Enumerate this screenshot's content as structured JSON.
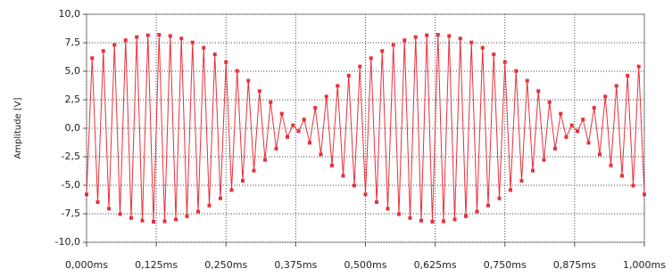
{
  "chart_data": {
    "type": "line",
    "y_label": "Amplitude [V]",
    "x": [
      0,
      0.01,
      0.02,
      0.03,
      0.04,
      0.05,
      0.06,
      0.07,
      0.08,
      0.09,
      0.1,
      0.11,
      0.12,
      0.13,
      0.14,
      0.15,
      0.16,
      0.17,
      0.18,
      0.19,
      0.2,
      0.21,
      0.22,
      0.23,
      0.24,
      0.25,
      0.26,
      0.27,
      0.28,
      0.29,
      0.3,
      0.31,
      0.32,
      0.33,
      0.34,
      0.35,
      0.36,
      0.37,
      0.38,
      0.39,
      0.4,
      0.41,
      0.42,
      0.43,
      0.44,
      0.45,
      0.46,
      0.47,
      0.48,
      0.49,
      0.5,
      0.51,
      0.52,
      0.53,
      0.54,
      0.55,
      0.56,
      0.57,
      0.58,
      0.59,
      0.6,
      0.61,
      0.62,
      0.63,
      0.64,
      0.65,
      0.66,
      0.67,
      0.68,
      0.69,
      0.7,
      0.71,
      0.72,
      0.73,
      0.74,
      0.75,
      0.76,
      0.77,
      0.78,
      0.79,
      0.8,
      0.81,
      0.82,
      0.83,
      0.84,
      0.85,
      0.86,
      0.87,
      0.88,
      0.89,
      0.9,
      0.91,
      0.92,
      0.93,
      0.94,
      0.95,
      0.96,
      0.97,
      0.98,
      0.99,
      1
    ],
    "series": [
      {
        "color": "#e8303a",
        "values": [
          -5.8,
          6.15,
          -6.48,
          6.78,
          -7.06,
          7.31,
          -7.53,
          7.72,
          -7.87,
          8.0,
          -8.1,
          8.16,
          -8.2,
          8.2,
          -8.16,
          8.1,
          -8.0,
          7.87,
          -7.72,
          7.53,
          -7.31,
          7.06,
          -6.78,
          6.48,
          -6.15,
          5.8,
          -5.42,
          5.03,
          -4.61,
          4.17,
          -3.72,
          3.26,
          -2.78,
          2.29,
          -1.79,
          1.28,
          -0.77,
          0.26,
          -0.26,
          0.77,
          -1.28,
          1.79,
          -2.29,
          2.78,
          -3.26,
          3.72,
          -4.17,
          4.61,
          -5.03,
          5.42,
          -5.8,
          6.15,
          -6.48,
          6.78,
          -7.06,
          7.31,
          -7.53,
          7.72,
          -7.87,
          8.0,
          -8.1,
          8.16,
          -8.2,
          8.2,
          -8.16,
          8.1,
          -8.0,
          7.87,
          -7.72,
          7.53,
          -7.31,
          7.06,
          -6.78,
          6.48,
          -6.15,
          5.8,
          -5.42,
          5.03,
          -4.61,
          4.17,
          -3.72,
          3.26,
          -2.78,
          2.29,
          -1.79,
          1.28,
          -0.77,
          0.26,
          -0.26,
          0.77,
          -1.28,
          1.79,
          -2.29,
          2.78,
          -3.26,
          3.72,
          -4.17,
          4.61,
          -5.03,
          5.42,
          -5.8
        ]
      }
    ],
    "xlim": [
      0,
      1
    ],
    "xticks": [
      {
        "value": 0,
        "label": "0,000ms"
      },
      {
        "value": 0.125,
        "label": "0,125ms"
      },
      {
        "value": 0.25,
        "label": "0,250ms"
      },
      {
        "value": 0.375,
        "label": "0,375ms"
      },
      {
        "value": 0.5,
        "label": "0,500ms"
      },
      {
        "value": 0.625,
        "label": "0,625ms"
      },
      {
        "value": 0.75,
        "label": "0,750ms"
      },
      {
        "value": 0.875,
        "label": "0,875ms"
      },
      {
        "value": 1,
        "label": "1,000ms"
      }
    ],
    "ylim": [
      -10,
      10
    ],
    "yticks": [
      {
        "value": -10,
        "label": "-10,0"
      },
      {
        "value": -7.5,
        "label": "-7,5"
      },
      {
        "value": -5,
        "label": "-5,0"
      },
      {
        "value": -2.5,
        "label": "-2,5"
      },
      {
        "value": 0,
        "label": "0,0"
      },
      {
        "value": 2.5,
        "label": "2,5"
      },
      {
        "value": 5,
        "label": "5,0"
      },
      {
        "value": 7.5,
        "label": "7,5"
      },
      {
        "value": 10,
        "label": "10,0"
      }
    ],
    "grid": true
  }
}
